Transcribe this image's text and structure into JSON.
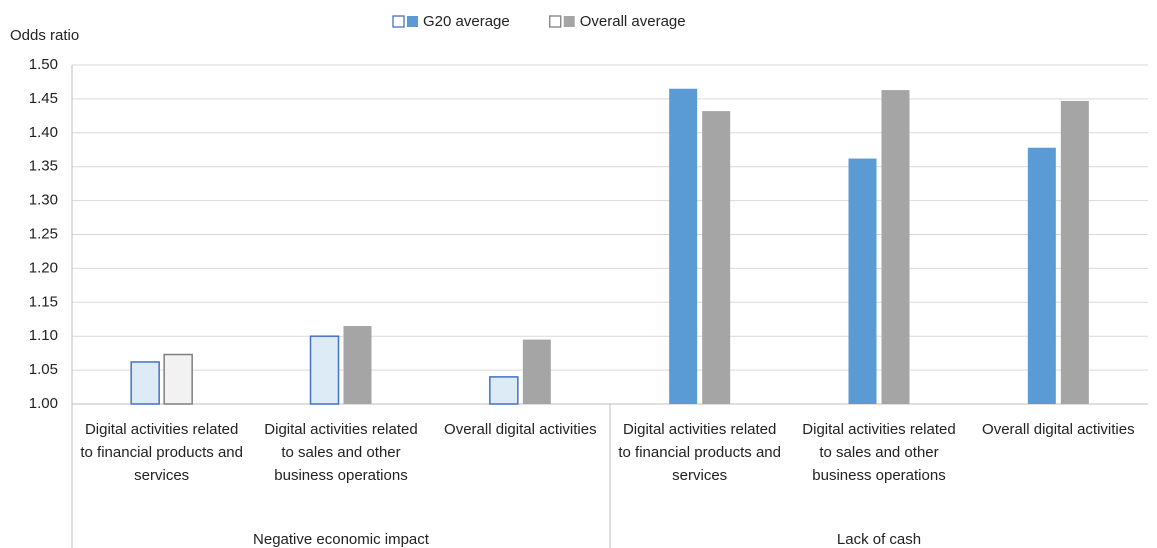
{
  "chart_data": {
    "type": "bar",
    "y_axis_label": "Odds ratio",
    "categories": [
      "Digital activities related to financial products and services",
      "Digital activities related to sales and other business operations",
      "Overall digital activities",
      "Digital activities related to financial products and services",
      "Digital activities related to sales and other business operations",
      "Overall digital activities"
    ],
    "groups": [
      "Negative economic impact",
      "Lack of cash"
    ],
    "series": [
      {
        "name": "G20 average",
        "color": "#5b9bd5",
        "outline": "#4472c4",
        "colors": [
          "#ddebf7",
          "#ddebf7",
          "#ddebf7",
          "#5b9bd5",
          "#5b9bd5",
          "#5b9bd5"
        ],
        "values": [
          1.062,
          1.1,
          1.04,
          1.465,
          1.362,
          1.378
        ]
      },
      {
        "name": "Overall average",
        "color": "#a5a5a5",
        "outline": "#7f7f7f",
        "colors": [
          "#f2f2f2",
          "#a5a5a5",
          "#a5a5a5",
          "#a5a5a5",
          "#a5a5a5",
          "#a5a5a5"
        ],
        "values": [
          1.073,
          1.115,
          1.095,
          1.432,
          1.463,
          1.447
        ]
      }
    ],
    "ylim": [
      1.0,
      1.5
    ],
    "yticks": [
      {
        "value": 1.0,
        "label": "1.00"
      },
      1.05,
      {
        "value": 1.1,
        "label": "1.10"
      },
      1.15,
      {
        "value": 1.2,
        "label": "1.20"
      },
      1.25,
      {
        "value": 1.3,
        "label": "1.30"
      },
      1.35,
      {
        "value": 1.4,
        "label": "1.40"
      },
      1.45,
      {
        "value": 1.5,
        "label": "1.50"
      }
    ],
    "grid": true
  }
}
